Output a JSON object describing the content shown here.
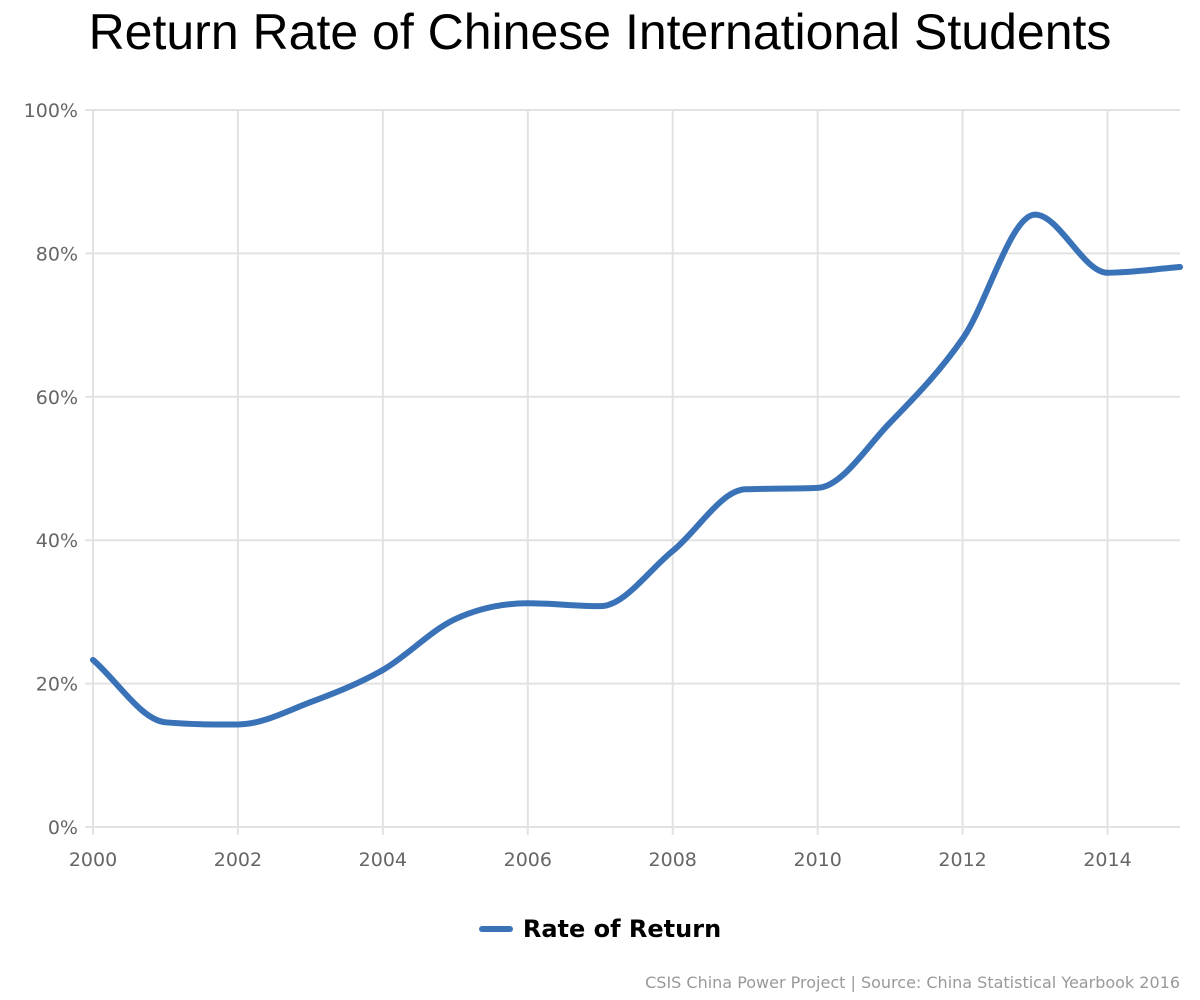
{
  "chart_data": {
    "type": "line",
    "title": "Return Rate of Chinese International Students",
    "xlabel": "",
    "ylabel": "",
    "x": [
      2000,
      2001,
      2002,
      2003,
      2004,
      2005,
      2006,
      2007,
      2008,
      2009,
      2010,
      2011,
      2012,
      2013,
      2014,
      2015
    ],
    "xlim": [
      2000,
      2015
    ],
    "ylim": [
      0,
      100
    ],
    "x_ticks": [
      "2000",
      "2002",
      "2004",
      "2006",
      "2008",
      "2010",
      "2012",
      "2014"
    ],
    "x_tick_values": [
      2000,
      2002,
      2004,
      2006,
      2008,
      2010,
      2012,
      2014
    ],
    "y_ticks": [
      "0%",
      "20%",
      "40%",
      "60%",
      "80%",
      "100%"
    ],
    "y_tick_values": [
      0,
      20,
      40,
      60,
      80,
      100
    ],
    "grid": true,
    "legend_position": "bottom-center",
    "series": [
      {
        "name": "Rate of Return",
        "color": "#3a72b8",
        "values": [
          23.3,
          14.6,
          14.3,
          17.4,
          21.9,
          29.0,
          31.2,
          30.8,
          38.5,
          47.1,
          47.3,
          56.4,
          68.1,
          85.4,
          77.3,
          78.1
        ]
      }
    ]
  },
  "legend": {
    "label": "Rate of Return"
  },
  "footer": {
    "text": "CSIS China Power Project | Source: China Statistical Yearbook 2016"
  }
}
